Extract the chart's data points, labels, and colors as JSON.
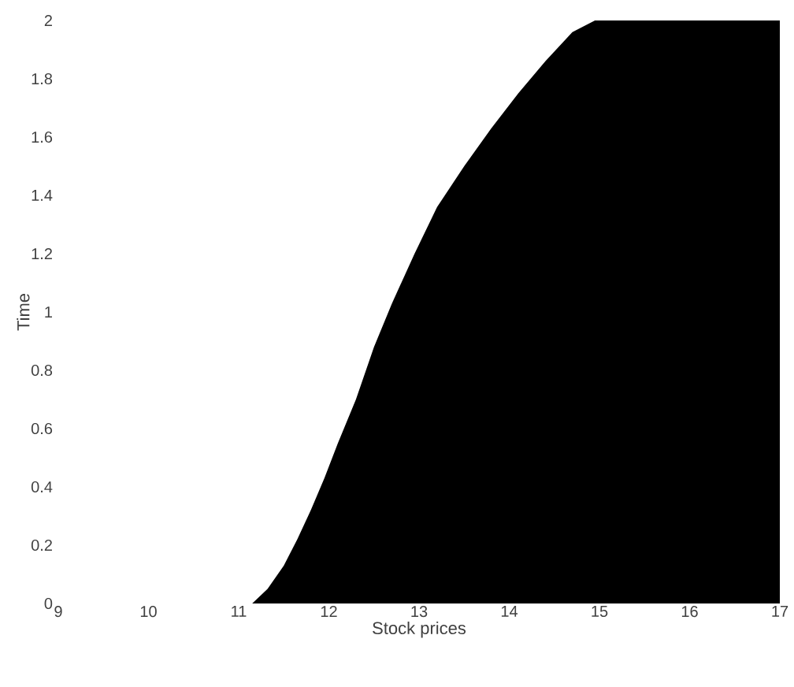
{
  "chart_data": {
    "type": "area",
    "xlabel": "Stock prices",
    "ylabel": "Time",
    "xlim": [
      9,
      17
    ],
    "ylim": [
      0,
      2
    ],
    "xticks": [
      9,
      10,
      11,
      12,
      13,
      14,
      15,
      16,
      17
    ],
    "yticks": [
      0,
      0.2,
      0.4,
      0.6,
      0.8,
      1,
      1.2,
      1.4,
      1.6,
      1.8,
      2
    ],
    "series": [
      {
        "color": "#000000",
        "x": [
          11.15,
          11.32,
          11.5,
          11.65,
          11.8,
          11.95,
          12.1,
          12.3,
          12.5,
          12.7,
          12.95,
          13.2,
          13.5,
          13.8,
          14.1,
          14.4,
          14.7,
          14.95,
          17
        ],
        "values": [
          0,
          0.05,
          0.13,
          0.22,
          0.32,
          0.43,
          0.55,
          0.7,
          0.88,
          1.03,
          1.2,
          1.36,
          1.5,
          1.63,
          1.75,
          1.86,
          1.96,
          2,
          2
        ]
      }
    ],
    "grid": false
  }
}
